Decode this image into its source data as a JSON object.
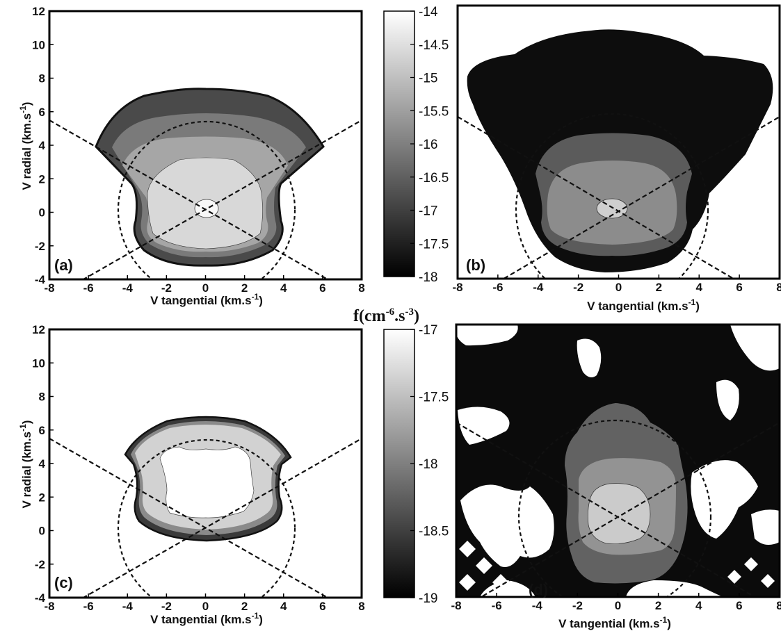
{
  "figure": {
    "colorbar_unit": "f(cm-6.s-3)"
  },
  "chart_data": [
    {
      "panel": "(a)",
      "type": "heatmap",
      "plot": "filled contour of velocity distribution function",
      "xlabel": "V tangential (km.s-1)",
      "ylabel": "V radial (km.s-1)",
      "xlim": [
        -8,
        8
      ],
      "ylim": [
        -4,
        12
      ],
      "xticks": [
        -8,
        -6,
        -4,
        -2,
        0,
        2,
        4,
        6,
        8
      ],
      "yticks": [
        -4,
        -2,
        0,
        2,
        4,
        6,
        8,
        10,
        12
      ],
      "colorbar": {
        "min": -18,
        "max": -14,
        "ticks": [
          -14,
          -14.5,
          -15,
          -15.5,
          -16,
          -16.5,
          -17,
          -17.5,
          -18
        ]
      },
      "contours": [
        {
          "level": -17.5,
          "shade": "#4a4a4a",
          "extent": {
            "x": [
              -6,
              6
            ],
            "y": [
              -3.3,
              7.2
            ]
          }
        },
        {
          "level": -16.5,
          "shade": "#7a7a7a",
          "extent": {
            "x": [
              -4.5,
              4.5
            ],
            "y": [
              -3.0,
              5.3
            ]
          }
        },
        {
          "level": -15.5,
          "shade": "#a6a6a6",
          "extent": {
            "x": [
              -3.8,
              3.8
            ],
            "y": [
              -2.8,
              4.0
            ]
          }
        },
        {
          "level": -14.5,
          "shade": "#d8d8d8",
          "extent": {
            "x": [
              -2.5,
              2.5
            ],
            "y": [
              -2.5,
              3.1
            ]
          }
        },
        {
          "level": -14,
          "shade": "#f8f8f8",
          "extent": {
            "x": [
              -0.6,
              0.6
            ],
            "y": [
              -0.4,
              0.4
            ]
          }
        }
      ],
      "overlays": [
        "dashed circle radius 4.5 centered at (0,0)",
        "two dashed diagonal lines through origin"
      ]
    },
    {
      "panel": "(b)",
      "type": "heatmap",
      "plot": "filled contour of velocity distribution function",
      "xlabel": "V tangential (km.s-1)",
      "ylabel": "",
      "xlim": [
        -8,
        8
      ],
      "ylim": [
        -4,
        12
      ],
      "xticks": [
        -8,
        -6,
        -4,
        -2,
        0,
        2,
        4,
        6,
        8
      ],
      "colorbar": {
        "min": -18,
        "max": -14,
        "ticks": [
          -14,
          -14.5,
          -15,
          -15.5,
          -16,
          -16.5,
          -17,
          -17.5,
          -18
        ]
      },
      "contours": [
        {
          "level": -18,
          "shade": "#0d0d0d",
          "extent": {
            "x": [
              -7.9,
              7.9
            ],
            "y": [
              -3.6,
              11.4
            ]
          }
        },
        {
          "level": -17,
          "shade": "#5b5b5b",
          "extent": {
            "x": [
              -3.6,
              3.6
            ],
            "y": [
              -2.6,
              4.8
            ]
          }
        },
        {
          "level": -16,
          "shade": "#8c8c8c",
          "extent": {
            "x": [
              -2.9,
              2.9
            ],
            "y": [
              -2.1,
              2.7
            ]
          }
        },
        {
          "level": -15,
          "shade": "#cfcfcf",
          "extent": {
            "x": [
              -0.4,
              0.4
            ],
            "y": [
              -0.4,
              0.4
            ]
          }
        }
      ],
      "overlays": [
        "dashed circle radius 4.5 centered at (0,0)",
        "two dashed diagonal lines through origin"
      ]
    },
    {
      "panel": "(c)",
      "type": "heatmap",
      "plot": "filled contour of velocity distribution function",
      "xlabel": "V tangential (km.s-1)",
      "ylabel": "V radial (km.s-1)",
      "xlim": [
        -8,
        8
      ],
      "ylim": [
        -4,
        12
      ],
      "xticks": [
        -8,
        -6,
        -4,
        -2,
        0,
        2,
        4,
        6,
        8
      ],
      "yticks": [
        -4,
        -2,
        0,
        2,
        4,
        6,
        8,
        10,
        12
      ],
      "colorbar": {
        "min": -19,
        "max": -17,
        "ticks": [
          -17,
          -17.5,
          -18,
          -18.5,
          -19
        ]
      },
      "contours": [
        {
          "level": -18.8,
          "shade": "#3a3a3a",
          "extent": {
            "x": [
              -4.3,
              4.3
            ],
            "y": [
              -3.4,
              4.7
            ]
          }
        },
        {
          "level": -18.4,
          "shade": "#8a8a8a",
          "extent": {
            "x": [
              -4.0,
              4.0
            ],
            "y": [
              -3.1,
              4.4
            ]
          }
        },
        {
          "level": -17.5,
          "shade": "#d2d2d2",
          "extent": {
            "x": [
              -3.8,
              3.8
            ],
            "y": [
              -2.9,
              4.1
            ]
          }
        },
        {
          "level": -17,
          "shade": "#ffffff",
          "extent": {
            "x": [
              -2.5,
              2.5
            ],
            "y": [
              -2.2,
              2.3
            ]
          }
        }
      ],
      "overlays": [
        "dashed circle radius 4.5 centered at (0,0)",
        "two dashed diagonal lines through origin"
      ]
    },
    {
      "panel": "(d)",
      "type": "heatmap",
      "plot": "filled contour of velocity distribution function",
      "xlabel": "V tangential (km.s-1)",
      "ylabel": "",
      "xlim": [
        -8,
        8
      ],
      "ylim": [
        -4,
        12
      ],
      "xticks": [
        -8,
        -6,
        -4,
        -2,
        0,
        2,
        4,
        6,
        8
      ],
      "colorbar": {
        "min": -19,
        "max": -17,
        "ticks": [
          -17,
          -17.5,
          -18,
          -18.5,
          -19
        ]
      },
      "contours": [
        {
          "level": -19,
          "shade": "#0b0b0b",
          "extent": {
            "x": [
              -8,
              8
            ],
            "y": [
              -4,
              12
            ]
          }
        },
        {
          "level": -18.5,
          "shade": "#626262",
          "extent": {
            "x": [
              -2.6,
              3.2
            ],
            "y": [
              -3.2,
              7.2
            ]
          }
        },
        {
          "level": -18,
          "shade": "#939393",
          "extent": {
            "x": [
              -2.3,
              2.9
            ],
            "y": [
              -1.7,
              4.1
            ]
          }
        },
        {
          "level": -17.5,
          "shade": "#cbcbcb",
          "extent": {
            "x": [
              -1.4,
              1.7
            ],
            "y": [
              -1.5,
              1.6
            ]
          }
        }
      ],
      "overlays": [
        "dashed circle radius 4.5 centered at (0,0)",
        "two dashed diagonal lines through origin"
      ]
    }
  ]
}
